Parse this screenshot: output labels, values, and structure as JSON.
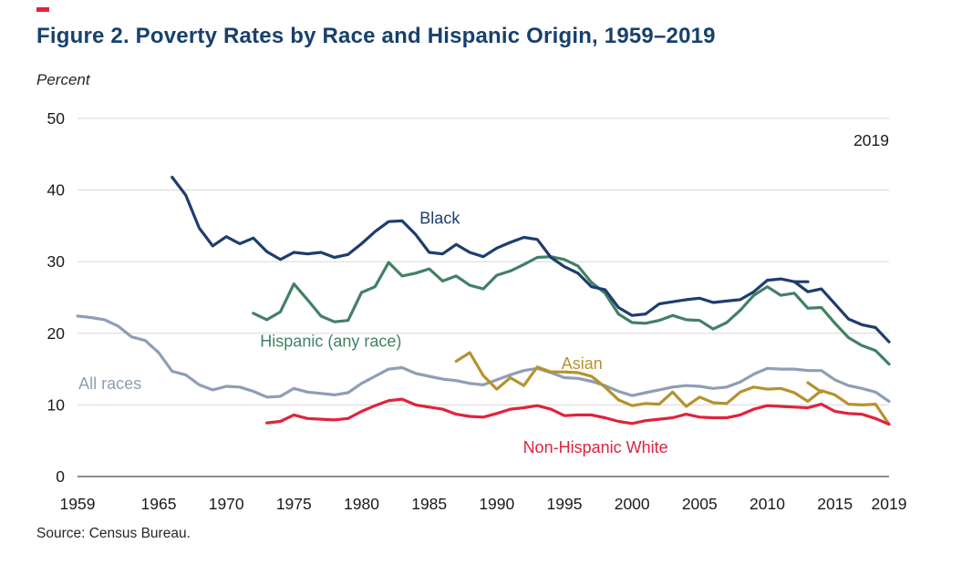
{
  "header": {
    "title": "Figure 2. Poverty Rates by Race and Hispanic Origin, 1959–2019",
    "unit_label": "Percent"
  },
  "footer": {
    "source": "Source: Census Bureau."
  },
  "colors": {
    "accent_red": "#e0233c",
    "title_navy": "#17406d"
  },
  "chart_data": {
    "type": "line",
    "title": "Figure 2. Poverty Rates by Race and Hispanic Origin, 1959–2019",
    "xlabel": "",
    "ylabel": "Percent",
    "xlim": [
      1959,
      2019
    ],
    "ylim": [
      0,
      50
    ],
    "yticks": [
      0,
      10,
      20,
      30,
      40,
      50
    ],
    "xticks": [
      1959,
      1965,
      1970,
      1975,
      1980,
      1985,
      1990,
      1995,
      2000,
      2005,
      2010,
      2015,
      2019
    ],
    "grid": "horizontal",
    "legend": "inline-labels",
    "annotation": {
      "text": "2019",
      "year": 2019,
      "value": 46.2,
      "anchor": "end"
    },
    "series": [
      {
        "id": "all-races",
        "name": "All races",
        "color": "#8e9eb5",
        "start_year": 1959,
        "values": [
          22.4,
          22.2,
          21.9,
          21.0,
          19.5,
          19.0,
          17.3,
          14.7,
          14.2,
          12.8,
          12.1,
          12.6,
          12.5,
          11.9,
          11.1,
          11.2,
          12.3,
          11.8,
          11.6,
          11.4,
          11.7,
          13.0,
          14.0,
          15.0,
          15.2,
          14.4,
          14.0,
          13.6,
          13.4,
          13.0,
          12.8,
          13.5,
          14.2,
          14.8,
          15.1,
          14.5,
          13.8,
          13.7,
          13.3,
          12.7,
          11.9,
          11.3,
          11.7,
          12.1,
          12.5,
          12.7,
          12.6,
          12.3,
          12.5,
          13.2,
          14.3,
          15.1,
          15.0,
          15.0,
          14.8,
          14.8,
          13.5,
          12.7,
          12.3,
          11.8,
          10.5
        ],
        "label": {
          "text": "All races",
          "year": 1961.4,
          "value": 12.2,
          "anchor": "middle"
        }
      },
      {
        "id": "hispanic",
        "name": "Hispanic (any race)",
        "color": "#418163",
        "start_year": 1972,
        "values": [
          22.8,
          21.9,
          23.0,
          26.9,
          24.7,
          22.4,
          21.6,
          21.8,
          25.7,
          26.5,
          29.9,
          28.0,
          28.4,
          29.0,
          27.3,
          28.0,
          26.7,
          26.2,
          28.1,
          28.7,
          29.6,
          30.6,
          30.7,
          30.3,
          29.4,
          27.1,
          25.6,
          22.7,
          21.5,
          21.4,
          21.8,
          22.5,
          21.9,
          21.8,
          20.6,
          21.5,
          23.2,
          25.3,
          26.5,
          25.3,
          25.6,
          23.5,
          23.6,
          21.4,
          19.4,
          18.3,
          17.6,
          15.7
        ],
        "label": {
          "text": "Hispanic (any race)",
          "year": 1972.5,
          "value": 18.1,
          "anchor": "start"
        }
      },
      {
        "id": "black",
        "name": "Black",
        "color": "#1e3d6e",
        "start_year": 1966,
        "values": [
          41.8,
          39.3,
          34.7,
          32.2,
          33.5,
          32.5,
          33.3,
          31.4,
          30.3,
          31.3,
          31.1,
          31.3,
          30.6,
          31.0,
          32.5,
          34.2,
          35.6,
          35.7,
          33.8,
          31.3,
          31.1,
          32.4,
          31.3,
          30.7,
          31.9,
          32.7,
          33.4,
          33.1,
          30.6,
          29.3,
          28.4,
          26.5,
          26.1,
          23.6,
          22.5,
          22.7,
          24.1,
          24.4,
          24.7,
          24.9,
          24.3,
          24.5,
          24.7,
          25.8,
          27.4,
          27.6,
          27.2,
          25.8,
          26.2,
          24.1,
          22.0,
          21.2,
          20.8,
          18.8
        ],
        "label": {
          "text": "Black",
          "year": 1984.3,
          "value": 35.3,
          "anchor": "start"
        }
      },
      {
        "id": "asian",
        "name": "Asian",
        "color": "#b6922e",
        "start_year": 1987,
        "values": [
          16.1,
          17.3,
          14.1,
          12.2,
          13.8,
          12.7,
          15.3,
          14.6,
          14.6,
          14.5,
          14.0,
          12.5,
          10.7,
          9.9,
          10.2,
          10.1,
          11.8,
          9.8,
          11.1,
          10.3,
          10.2,
          11.8,
          12.5,
          12.2,
          12.3,
          11.7,
          10.5,
          12.0,
          11.4,
          10.1,
          10.0,
          10.1,
          7.3
        ],
        "label": {
          "text": "Asian",
          "year": 1996.3,
          "value": 15.0,
          "anchor": "middle"
        }
      },
      {
        "id": "non-hispanic-white",
        "name": "Non-Hispanic White",
        "color": "#e0233c",
        "start_year": 1973,
        "values": [
          7.5,
          7.7,
          8.6,
          8.1,
          8.0,
          7.9,
          8.1,
          9.1,
          9.9,
          10.6,
          10.8,
          10.0,
          9.7,
          9.4,
          8.7,
          8.4,
          8.3,
          8.8,
          9.4,
          9.6,
          9.9,
          9.4,
          8.5,
          8.6,
          8.6,
          8.2,
          7.7,
          7.4,
          7.8,
          8.0,
          8.2,
          8.7,
          8.3,
          8.2,
          8.2,
          8.6,
          9.4,
          9.9,
          9.8,
          9.7,
          9.6,
          10.1,
          9.1,
          8.8,
          8.7,
          8.1,
          7.3
        ],
        "label": {
          "text": "Non-Hispanic White",
          "year": 1997.3,
          "value": 3.3,
          "anchor": "middle"
        }
      }
    ],
    "break_segments": [
      {
        "series": "black",
        "color": "#1e3d6e",
        "start_year": 2012,
        "values": [
          27.2,
          27.2
        ]
      },
      {
        "series": "asian",
        "color": "#b6922e",
        "start_year": 2013,
        "values": [
          13.1,
          11.8
        ]
      }
    ],
    "source": "Source: Census Bureau."
  }
}
